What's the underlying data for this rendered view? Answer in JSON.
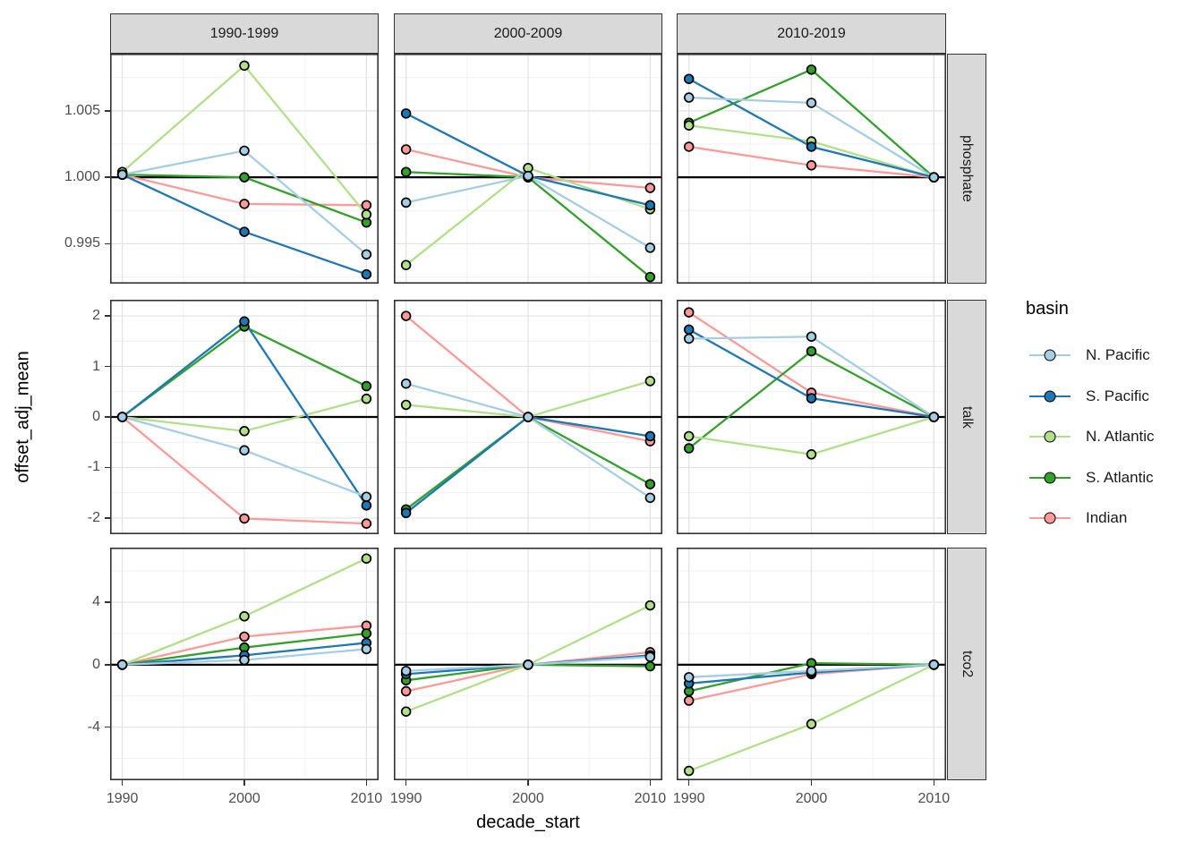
{
  "figure_title": "",
  "axes": {
    "xlabel": "decade_start",
    "ylabel": "offset_adj_mean",
    "x_tick_labels": [
      "1990",
      "2000",
      "2010"
    ]
  },
  "legend": {
    "title": "basin",
    "entries": [
      {
        "label": "N. Pacific",
        "color": "#a6cee3"
      },
      {
        "label": "S. Pacific",
        "color": "#1f78b4"
      },
      {
        "label": "N. Atlantic",
        "color": "#b2df8a"
      },
      {
        "label": "S. Atlantic",
        "color": "#33a02c"
      },
      {
        "label": "Indian",
        "color": "#fb9a99"
      }
    ]
  },
  "styles": {
    "grid_major": "#e2e2e2",
    "grid_minor": "#f1f1f1",
    "panel_border": "#333333",
    "strip_fill": "#d9d9d9",
    "baseline_color": "#000000",
    "tick_label_color": "#4d4d4d",
    "point_stroke": "#000000"
  },
  "chart_data": {
    "type": "line",
    "x": [
      1990,
      2000,
      2010
    ],
    "xlim": [
      1989,
      2011
    ],
    "x_ticks": [
      1990,
      2000,
      2010
    ],
    "x_minor": [
      1995,
      2005
    ],
    "xlabel": "decade_start",
    "ylabel": "offset_adj_mean",
    "legend_position": "right",
    "grid": true,
    "col_facets": [
      "1990-1999",
      "2000-2009",
      "2010-2019"
    ],
    "row_facets": [
      {
        "label": "phosphate",
        "ylim": [
          0.992,
          1.0093
        ],
        "ticks": [
          0.995,
          1.0,
          1.005
        ],
        "tick_labels": [
          "0.995",
          "1.000",
          "1.005"
        ],
        "minor_ticks": [
          0.9925,
          0.9975,
          1.0025,
          1.0075
        ],
        "baseline": 1.0
      },
      {
        "label": "talk",
        "ylim": [
          -2.32,
          2.32
        ],
        "ticks": [
          -2,
          -1,
          0,
          1,
          2
        ],
        "tick_labels": [
          "-2",
          "-1",
          "0",
          "1",
          "2"
        ],
        "minor_ticks": [
          -1.5,
          -0.5,
          0.5,
          1.5
        ],
        "baseline": 0
      },
      {
        "label": "tco2",
        "ylim": [
          -7.4,
          7.5
        ],
        "ticks": [
          -4,
          0,
          4
        ],
        "tick_labels": [
          "-4",
          "0",
          "4"
        ],
        "minor_ticks": [
          -6,
          -2,
          2,
          6
        ],
        "baseline": 0
      }
    ],
    "series_order": [
      "N. Pacific",
      "S. Pacific",
      "N. Atlantic",
      "S. Atlantic",
      "Indian"
    ],
    "draw_order": [
      "Indian",
      "S. Atlantic",
      "N. Atlantic",
      "S. Pacific",
      "N. Pacific"
    ],
    "panels": [
      {
        "row": "phosphate",
        "col": "1990-1999",
        "series": {
          "N. Pacific": [
            1.0002,
            1.002,
            0.9942
          ],
          "S. Pacific": [
            1.0002,
            0.9959,
            0.9927
          ],
          "N. Atlantic": [
            1.0004,
            1.0084,
            0.9972
          ],
          "S. Atlantic": [
            1.0002,
            1.0,
            0.9966
          ],
          "Indian": [
            1.0002,
            0.998,
            0.9979
          ]
        }
      },
      {
        "row": "phosphate",
        "col": "2000-2009",
        "series": {
          "N. Pacific": [
            0.9981,
            1.0001,
            0.9947
          ],
          "S. Pacific": [
            1.0048,
            1.0001,
            0.9979
          ],
          "N. Atlantic": [
            0.9934,
            1.0007,
            0.9976
          ],
          "S. Atlantic": [
            1.0004,
            1.0,
            0.9925
          ],
          "Indian": [
            1.0021,
            1.0,
            0.9992
          ]
        }
      },
      {
        "row": "phosphate",
        "col": "2010-2019",
        "series": {
          "N. Pacific": [
            1.006,
            1.0056,
            1.0
          ],
          "S. Pacific": [
            1.0074,
            1.0023,
            1.0
          ],
          "N. Atlantic": [
            1.0039,
            1.0027,
            1.0
          ],
          "S. Atlantic": [
            1.0041,
            1.0081,
            1.0
          ],
          "Indian": [
            1.0023,
            1.0009,
            1.0
          ]
        }
      },
      {
        "row": "talk",
        "col": "1990-1999",
        "series": {
          "N. Pacific": [
            0,
            -0.66,
            -1.58
          ],
          "S. Pacific": [
            0,
            1.89,
            -1.75
          ],
          "N. Atlantic": [
            0,
            -0.28,
            0.36
          ],
          "S. Atlantic": [
            0,
            1.79,
            0.61
          ],
          "Indian": [
            0,
            -2.01,
            -2.11
          ]
        }
      },
      {
        "row": "talk",
        "col": "2000-2009",
        "series": {
          "N. Pacific": [
            0.66,
            0,
            -1.6
          ],
          "S. Pacific": [
            -1.9,
            0,
            -0.38
          ],
          "N. Atlantic": [
            0.24,
            0,
            0.71
          ],
          "S. Atlantic": [
            -1.83,
            0,
            -1.33
          ],
          "Indian": [
            2.0,
            0,
            -0.48
          ]
        }
      },
      {
        "row": "talk",
        "col": "2010-2019",
        "series": {
          "N. Pacific": [
            1.55,
            1.59,
            0
          ],
          "S. Pacific": [
            1.73,
            0.37,
            0
          ],
          "N. Atlantic": [
            -0.38,
            -0.74,
            0
          ],
          "S. Atlantic": [
            -0.62,
            1.3,
            0
          ],
          "Indian": [
            2.07,
            0.48,
            0
          ]
        }
      },
      {
        "row": "tco2",
        "col": "1990-1999",
        "series": {
          "N. Pacific": [
            0,
            0.3,
            1.0
          ],
          "S. Pacific": [
            0,
            0.6,
            1.4
          ],
          "N. Atlantic": [
            0,
            3.1,
            6.8
          ],
          "S. Atlantic": [
            0,
            1.1,
            2.0
          ],
          "Indian": [
            0,
            1.8,
            2.5
          ]
        }
      },
      {
        "row": "tco2",
        "col": "2000-2009",
        "series": {
          "N. Pacific": [
            -0.4,
            0,
            0.5
          ],
          "S. Pacific": [
            -0.6,
            0,
            0.6
          ],
          "N. Atlantic": [
            -3.0,
            0,
            3.8
          ],
          "S. Atlantic": [
            -1.0,
            0,
            -0.1
          ],
          "Indian": [
            -1.7,
            0,
            0.8
          ]
        }
      },
      {
        "row": "tco2",
        "col": "2010-2019",
        "series": {
          "N. Pacific": [
            -0.8,
            -0.4,
            0
          ],
          "S. Pacific": [
            -1.2,
            -0.5,
            0
          ],
          "N. Atlantic": [
            -6.8,
            -3.8,
            0
          ],
          "S. Atlantic": [
            -1.7,
            0.1,
            0
          ],
          "Indian": [
            -2.3,
            -0.6,
            0
          ]
        }
      }
    ]
  }
}
